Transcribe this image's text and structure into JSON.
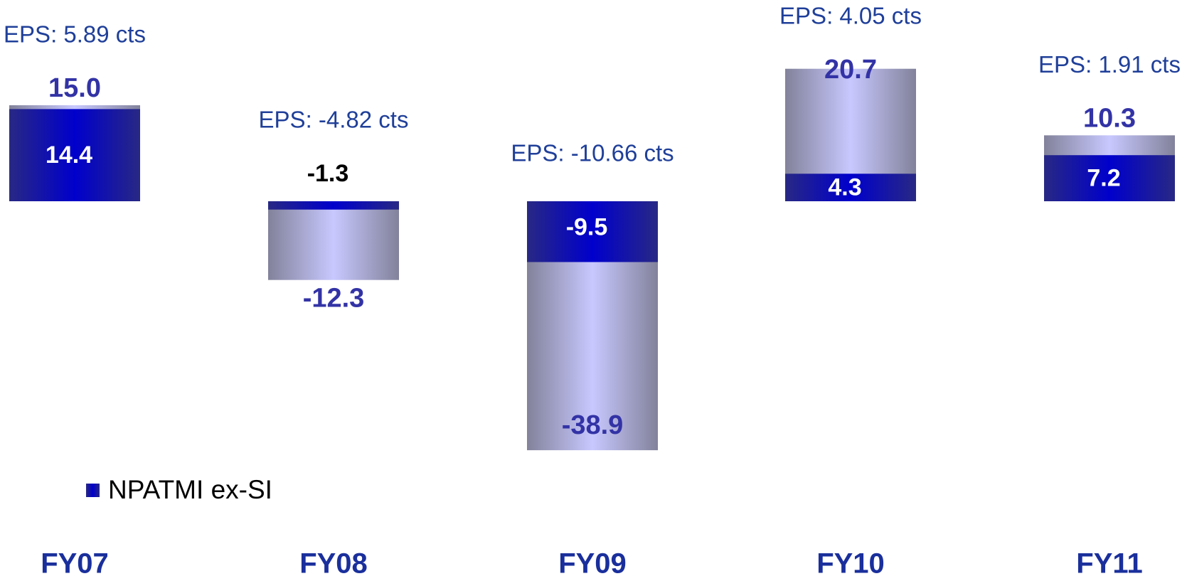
{
  "chart_data": {
    "type": "bar",
    "categories": [
      "FY07",
      "FY08",
      "FY09",
      "FY10",
      "FY11"
    ],
    "series": [
      {
        "name": "NPATMI ex-SI",
        "color": "#0000cc",
        "values": [
          14.4,
          -1.3,
          -9.5,
          4.3,
          7.2
        ],
        "value_labels": [
          "14.4",
          "-1.3",
          "-9.5",
          "4.3",
          "7.2"
        ]
      },
      {
        "color": "#c8c8ff",
        "values": [
          15,
          -12.3,
          -38.9,
          20.7,
          10.3
        ],
        "value_labels": [
          "15.0",
          "-12.3",
          "-38.9",
          "20.7",
          "10.3"
        ]
      }
    ],
    "annotations": [
      "EPS: 5.89 cts",
      "EPS: -4.82 cts",
      "EPS: -10.66 cts",
      "EPS: 4.05 cts",
      "EPS: 1.91 cts"
    ]
  }
}
